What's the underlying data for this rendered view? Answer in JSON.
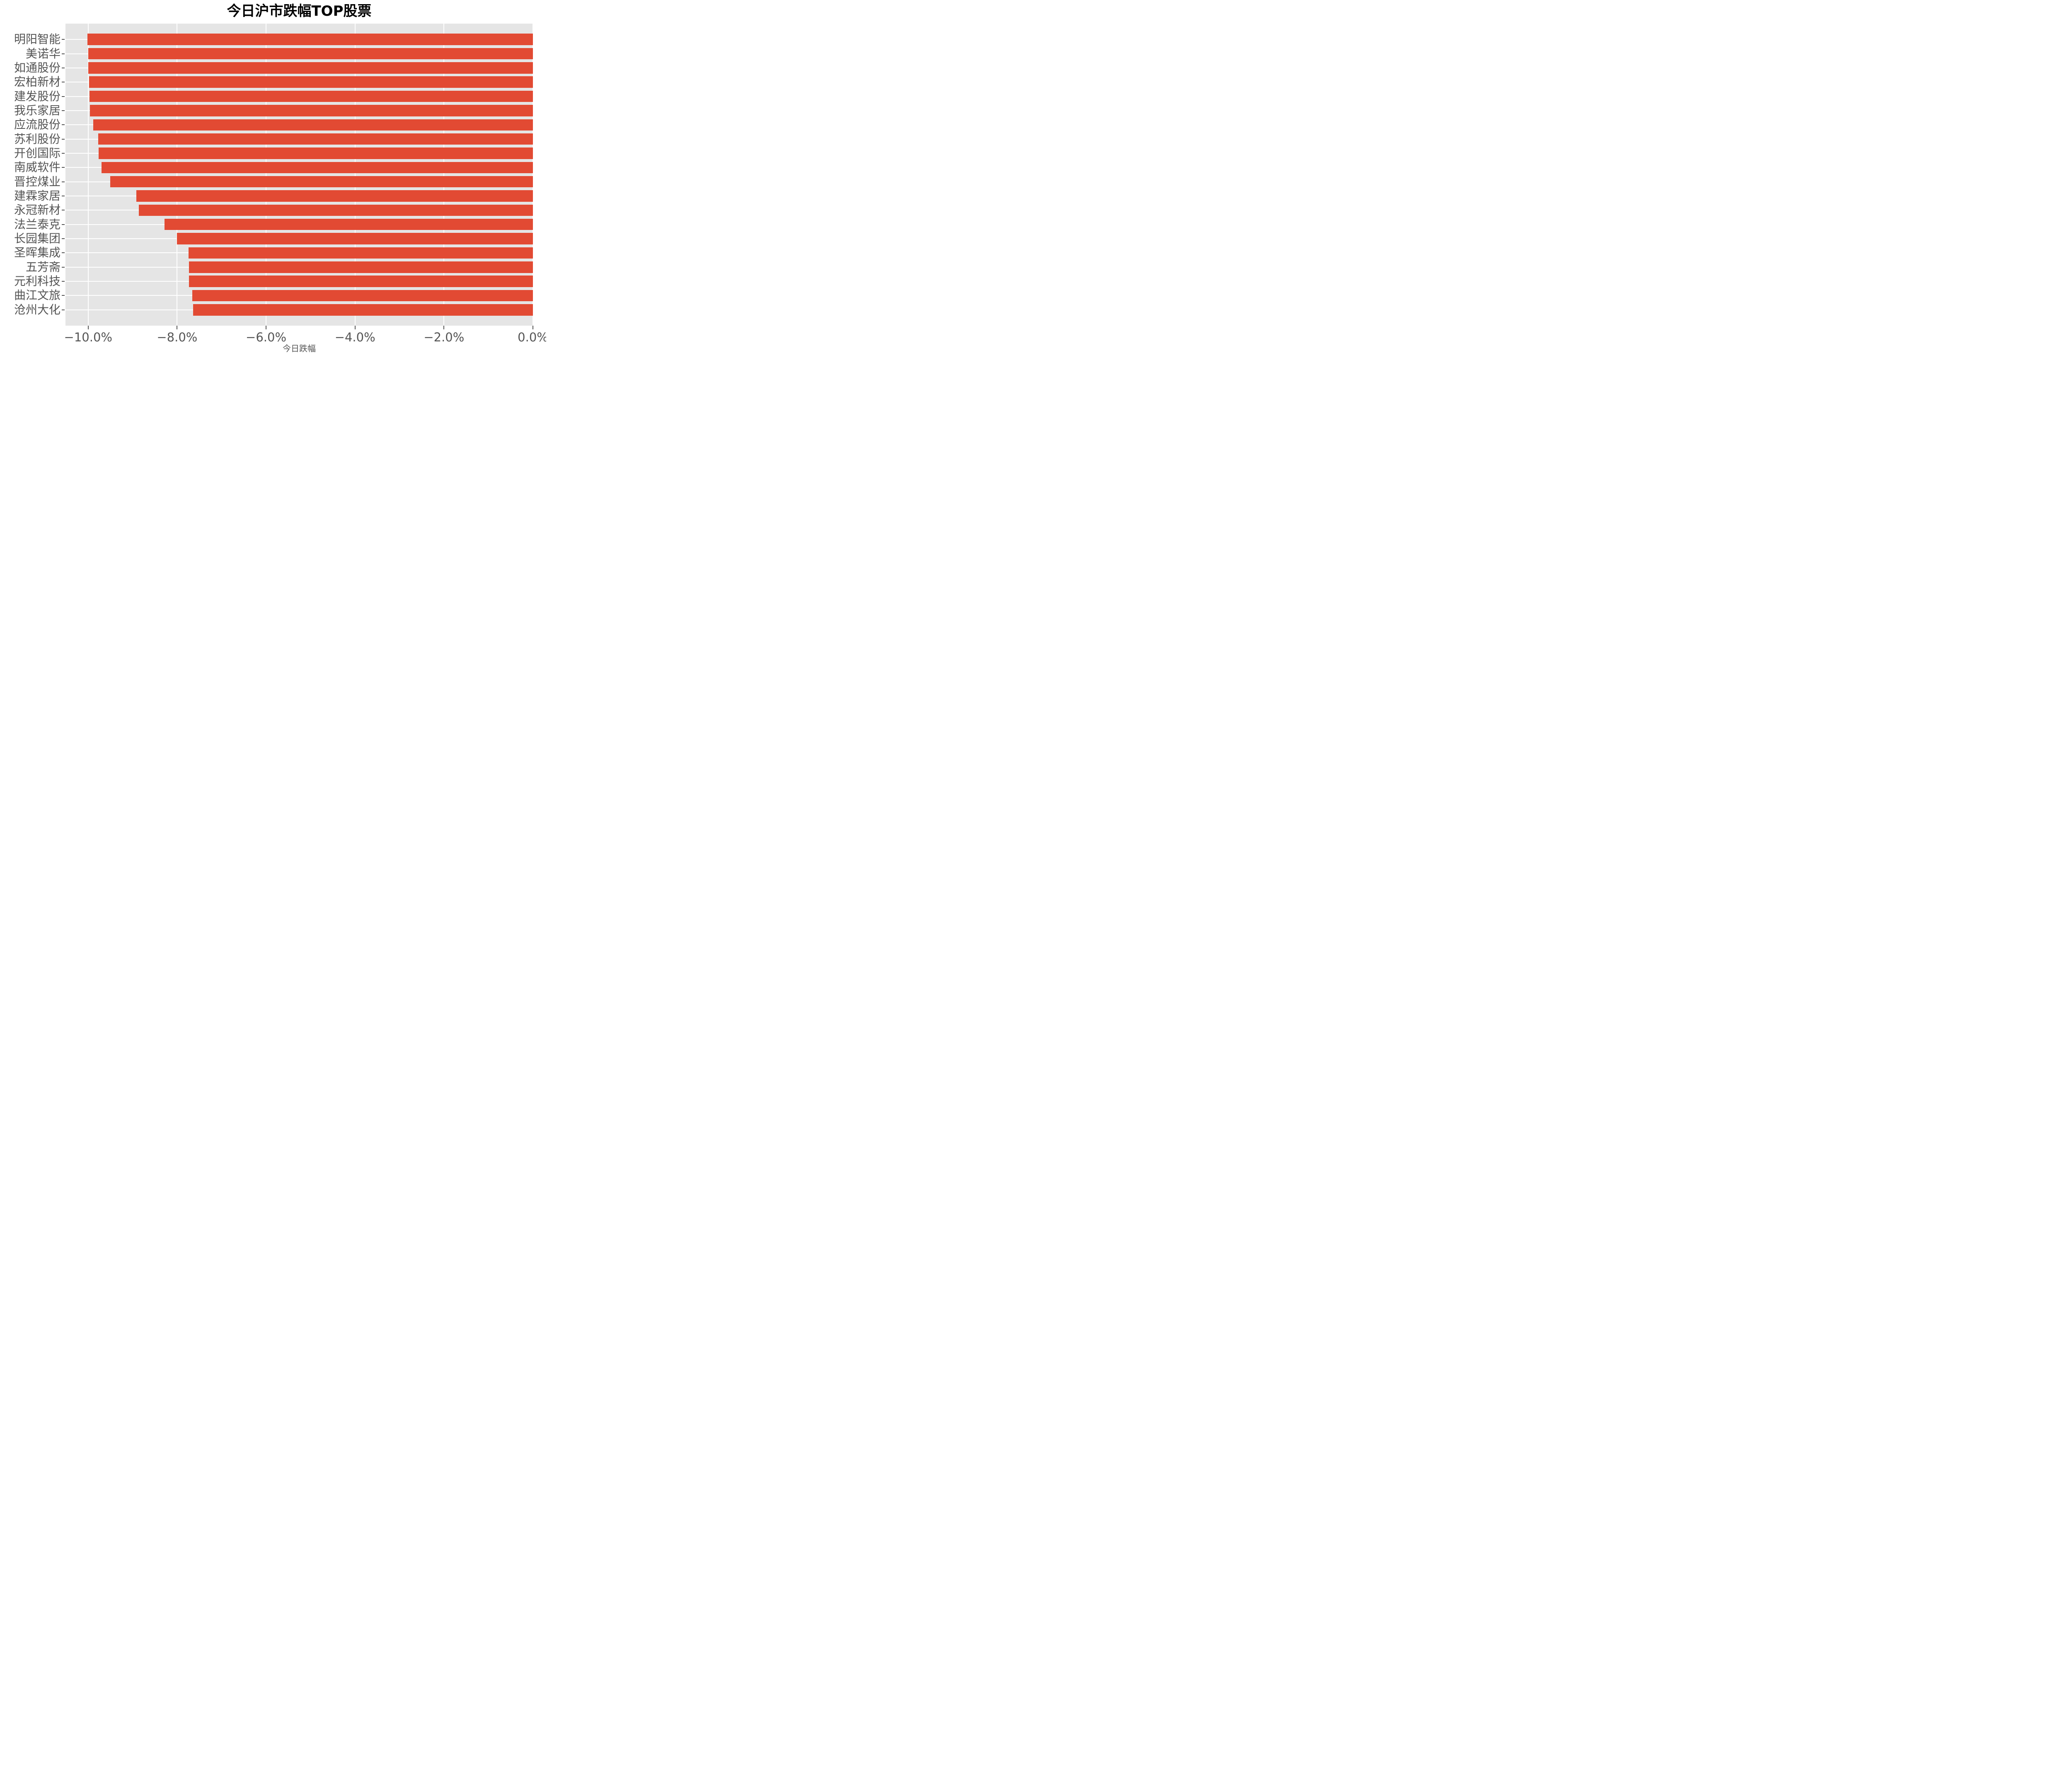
{
  "title": "今日沪市跌幅TOP股票",
  "chart_data": {
    "type": "bar",
    "orientation": "horizontal",
    "title": "今日沪市跌幅TOP股票",
    "xlabel": "今日跌幅",
    "ylabel": "",
    "unit": "%",
    "categories": [
      "明阳智能",
      "美诺华",
      "如通股份",
      "宏柏新材",
      "建发股份",
      "我乐家居",
      "应流股份",
      "苏利股份",
      "开创国际",
      "南威软件",
      "晋控煤业",
      "建霖家居",
      "永冠新材",
      "法兰泰克",
      "长园集团",
      "圣晖集成",
      "五芳斋",
      "元利科技",
      "曲江文旅",
      "沧州大化"
    ],
    "values": [
      -10.02,
      -10.0,
      -10.0,
      -9.98,
      -9.97,
      -9.96,
      -9.89,
      -9.77,
      -9.76,
      -9.7,
      -9.5,
      -8.92,
      -8.86,
      -8.28,
      -8.0,
      -7.74,
      -7.73,
      -7.73,
      -7.66,
      -7.64
    ],
    "xlim": [
      -10.51,
      0
    ],
    "xticks": [
      -10,
      -8,
      -6,
      -4,
      -2,
      0
    ],
    "xtick_labels": [
      "−10.0%",
      "−8.0%",
      "−6.0%",
      "−4.0%",
      "−2.0%",
      "0.0%"
    ],
    "grid": true,
    "legend": false,
    "colors": {
      "bar": "#E24A33",
      "panel_bg": "#E5E5E5",
      "grid": "#FFFFFF",
      "tick_text": "#555555",
      "title_text": "#000000",
      "figure_bg": "#FFFFFF"
    }
  }
}
